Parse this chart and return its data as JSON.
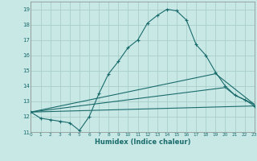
{
  "xlabel": "Humidex (Indice chaleur)",
  "bg_color": "#c8e8e6",
  "grid_color": "#a8ceca",
  "line_color": "#1a6b6b",
  "xlim": [
    0,
    23
  ],
  "ylim": [
    11,
    19.5
  ],
  "yticks": [
    11,
    12,
    13,
    14,
    15,
    16,
    17,
    18,
    19
  ],
  "xticks": [
    0,
    1,
    2,
    3,
    4,
    5,
    6,
    7,
    8,
    9,
    10,
    11,
    12,
    13,
    14,
    15,
    16,
    17,
    18,
    19,
    20,
    21,
    22,
    23
  ],
  "main_x": [
    0,
    1,
    2,
    3,
    4,
    5,
    6,
    7,
    8,
    9,
    10,
    11,
    12,
    13,
    14,
    15,
    16,
    17,
    18,
    19,
    20,
    21,
    22,
    23
  ],
  "main_y": [
    12.3,
    11.9,
    11.8,
    11.7,
    11.6,
    11.1,
    12.0,
    13.5,
    14.8,
    15.6,
    16.5,
    17.0,
    18.1,
    18.6,
    19.0,
    18.9,
    18.3,
    16.7,
    16.0,
    14.9,
    14.0,
    13.4,
    13.1,
    12.7
  ],
  "flat_lines": [
    {
      "x": [
        0,
        23
      ],
      "y": [
        12.3,
        12.7
      ]
    },
    {
      "x": [
        0,
        20,
        21,
        23
      ],
      "y": [
        12.3,
        13.9,
        13.4,
        12.8
      ]
    },
    {
      "x": [
        0,
        19,
        23
      ],
      "y": [
        12.3,
        14.8,
        12.8
      ]
    }
  ]
}
